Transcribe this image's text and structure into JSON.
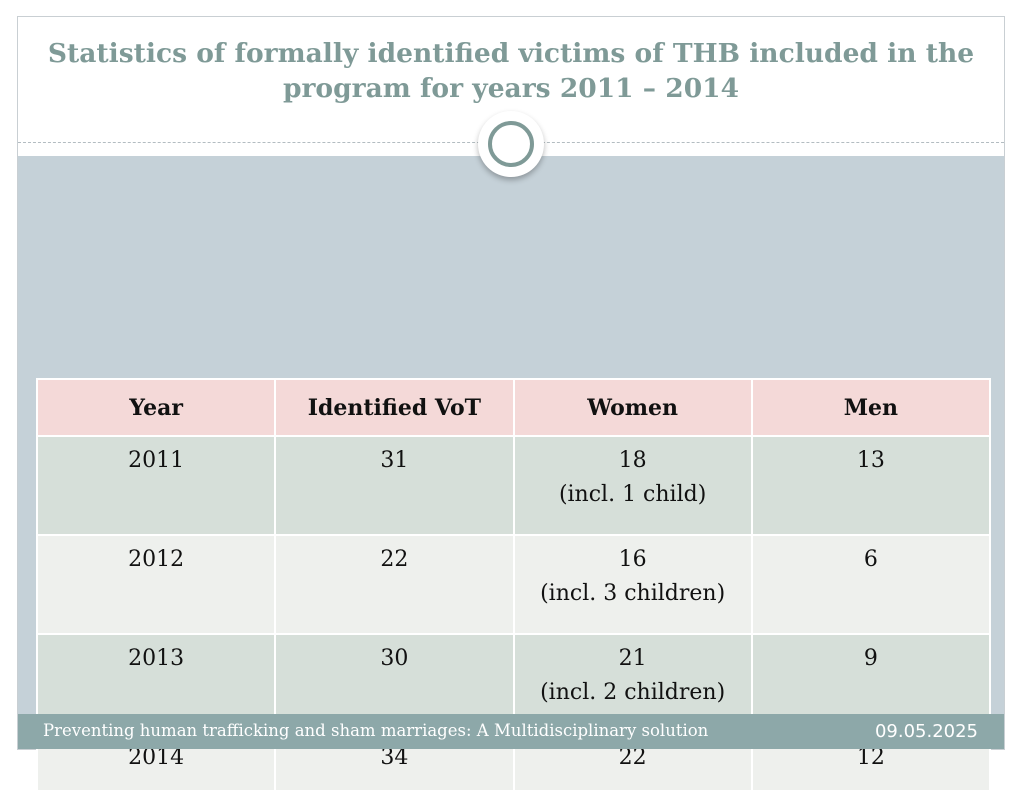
{
  "slide": {
    "title": "Statistics of formally identified victims of THB included in the program for years 2011 – 2014",
    "footer_text": "Preventing human trafficking and sham marriages: A Multidisciplinary solution",
    "footer_date": "09.05.2025"
  },
  "table": {
    "headers": [
      "Year",
      "Identified VoT",
      "Women",
      "Men"
    ],
    "rows": [
      {
        "year": "2011",
        "identified": "31",
        "women": "18",
        "women_note": "(incl. 1 child)",
        "men": "13"
      },
      {
        "year": "2012",
        "identified": "22",
        "women": "16",
        "women_note": "(incl. 3 children)",
        "men": "6"
      },
      {
        "year": "2013",
        "identified": "30",
        "women": "21",
        "women_note": "(incl. 2 children)",
        "men": "9"
      },
      {
        "year": "2014",
        "identified": "34",
        "women": "22",
        "women_note": "",
        "men": "12"
      }
    ]
  },
  "colors": {
    "title": "#7f9a97",
    "header_row": "#f4d9d8",
    "row_shaded": "#d6dfd9",
    "row_light": "#eef0ed",
    "body_background": "#c5d1d8",
    "footer_bar": "#8da8a9"
  }
}
